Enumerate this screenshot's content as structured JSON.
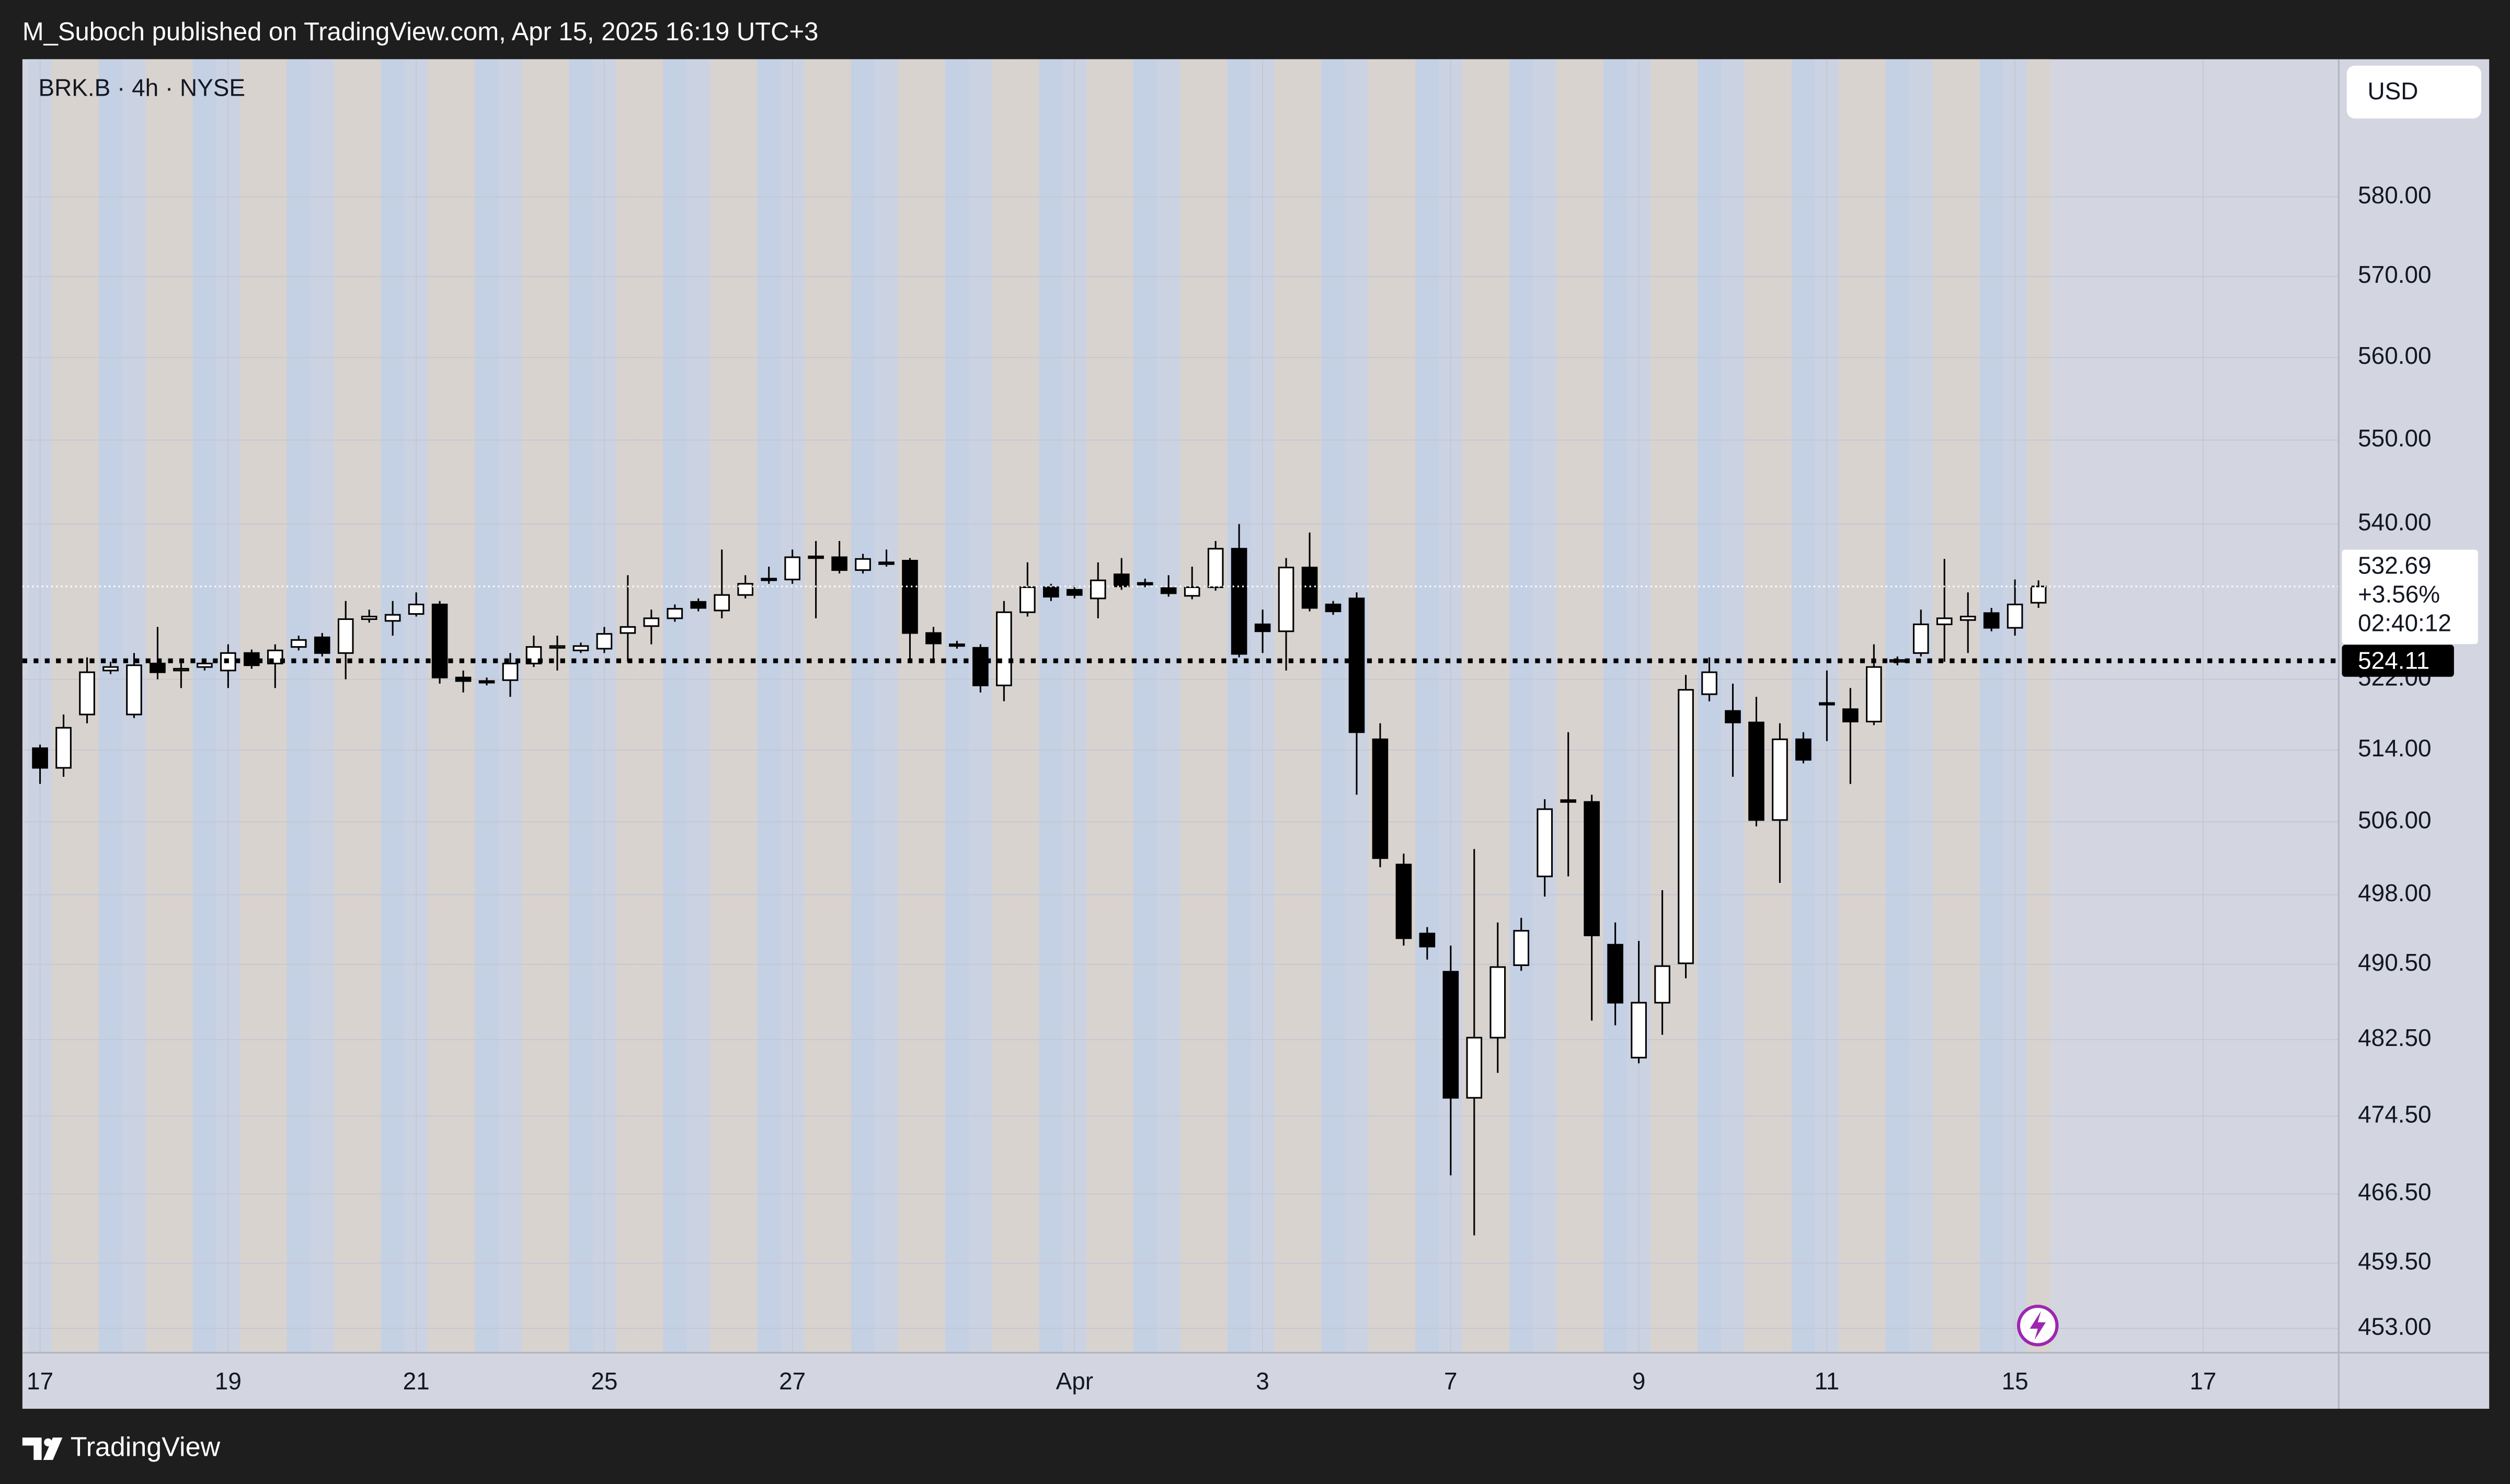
{
  "header": {
    "publisher": "M_Suboch published on TradingView.com, Apr 15, 2025 16:19 UTC+3"
  },
  "footer": {
    "brand": "TradingView"
  },
  "chart_data": {
    "type": "candlestick",
    "title": "BRK.B · 4h · NYSE",
    "currency": "USD",
    "x": [
      0,
      1,
      2,
      3,
      4,
      5,
      6,
      7,
      8,
      9,
      10,
      11,
      12,
      13,
      14,
      15,
      16,
      17,
      18,
      19,
      20,
      21,
      22,
      23,
      24,
      25,
      26,
      27,
      28,
      29,
      30,
      31,
      32,
      33,
      34,
      35,
      36,
      37,
      38,
      39,
      40,
      41,
      42,
      43,
      44,
      45,
      46,
      47,
      48,
      49,
      50,
      51,
      52,
      53,
      54,
      55,
      56,
      57,
      58,
      59,
      60,
      61,
      62,
      63,
      64,
      65,
      66,
      67,
      68,
      69,
      70,
      71,
      72,
      73,
      74,
      75,
      76,
      77,
      78,
      79,
      80,
      81,
      82,
      83,
      84,
      85
    ],
    "open": [
      514.2,
      512,
      518,
      523,
      518,
      523.8,
      523,
      523.4,
      523,
      525,
      523.8,
      525.7,
      526.8,
      525,
      528.9,
      528.7,
      529.5,
      530.6,
      522.2,
      521.8,
      521.9,
      523.8,
      525.6,
      525.3,
      525.5,
      527.3,
      528.1,
      529,
      530.9,
      529.9,
      531.7,
      533.5,
      533.5,
      536.2,
      536.1,
      534.6,
      535.5,
      535.7,
      527.3,
      526,
      525.6,
      521.3,
      529.7,
      532.6,
      532.3,
      531.3,
      534.1,
      533.1,
      532.5,
      531.6,
      532.6,
      537.1,
      528.3,
      527.5,
      534.9,
      530.6,
      531.3,
      515.2,
      501.3,
      493.8,
      489.7,
      476.4,
      482.7,
      490.4,
      500,
      508.4,
      508.2,
      492.6,
      480.6,
      486.4,
      490.6,
      520.3,
      518.4,
      517.1,
      506.2,
      515.2,
      519.2,
      518.6,
      517.2,
      524,
      525,
      528.3,
      528.8,
      529.6,
      527.9,
      530.8
    ],
    "high": [
      514.6,
      518,
      524.5,
      524,
      525,
      528,
      524,
      524.2,
      526,
      525.4,
      526,
      527,
      527.3,
      531,
      530,
      531,
      532,
      531,
      523,
      522.2,
      525,
      527,
      527,
      526.2,
      528,
      534,
      530,
      530.6,
      531.3,
      537,
      534,
      535,
      537,
      538,
      538,
      536.5,
      537,
      536,
      528,
      526.4,
      526,
      531,
      535.5,
      533,
      532.8,
      535.5,
      536,
      533.6,
      534,
      535,
      538,
      540,
      530,
      536,
      539,
      531,
      532,
      517,
      502.5,
      494.5,
      492.5,
      503,
      495,
      495.5,
      508.5,
      516,
      509,
      495,
      493,
      498.5,
      522.5,
      524.5,
      521.5,
      520,
      517,
      516,
      523,
      521,
      526,
      524.6,
      530,
      535.9,
      532,
      530.2,
      533.5,
      533.4
    ],
    "low": [
      510.2,
      511,
      517,
      522.6,
      517.6,
      522,
      521,
      523,
      521,
      523.2,
      521,
      525.3,
      524.6,
      522,
      528.5,
      527,
      529.2,
      521.5,
      520.5,
      521.3,
      520,
      523.4,
      523,
      525,
      525,
      524,
      526,
      528.6,
      529.8,
      529,
      531.3,
      533,
      533,
      529,
      534.2,
      534.2,
      535,
      524,
      524,
      525.5,
      520.5,
      519.5,
      529.2,
      531,
      531.3,
      529,
      532.3,
      532.6,
      531.5,
      531.2,
      532.2,
      524.5,
      525,
      523,
      529.8,
      529.4,
      509,
      501,
      492.5,
      491,
      468.4,
      462.3,
      479,
      489.8,
      497.8,
      500,
      484.5,
      484,
      480,
      483,
      489,
      519.5,
      511,
      505.5,
      499.3,
      512.5,
      515,
      510.2,
      516.8,
      523.6,
      524.6,
      524,
      525,
      527.5,
      527,
      530.2
    ],
    "close": [
      512,
      516.5,
      522.8,
      523.4,
      523.6,
      522.8,
      523.2,
      523.8,
      525,
      523.6,
      525.3,
      526.5,
      525,
      528.9,
      529.2,
      529.4,
      530.6,
      522.2,
      521.8,
      521.7,
      523.8,
      525.7,
      525.8,
      525.8,
      527.2,
      528,
      529,
      530.1,
      530.2,
      531.7,
      533,
      533.6,
      536.1,
      536,
      534.6,
      535.9,
      535.3,
      527.3,
      526.1,
      525.9,
      521.3,
      529.7,
      532.6,
      531.5,
      531.7,
      533.4,
      532.7,
      533.1,
      531.9,
      532.6,
      537.1,
      524.9,
      527.5,
      534.9,
      530.2,
      529.8,
      516,
      502,
      493.3,
      492.4,
      476.4,
      482.7,
      490.2,
      494.1,
      507.4,
      508.2,
      493.6,
      486.4,
      486.4,
      490.3,
      520.8,
      522.8,
      517.1,
      506.2,
      515.2,
      512.9,
      519.3,
      517.2,
      523.4,
      524.2,
      528.3,
      529,
      529.2,
      527.9,
      530.6,
      532.69
    ],
    "up_color": "#ffffff",
    "down_color": "#000000",
    "xlim": [
      -0.75,
      97.77
    ],
    "xticks": [
      {
        "value": 0,
        "label": "17"
      },
      {
        "value": 8,
        "label": "19"
      },
      {
        "value": 16,
        "label": "21"
      },
      {
        "value": 24,
        "label": "25"
      },
      {
        "value": 32,
        "label": "27"
      },
      {
        "value": 44,
        "label": "Apr"
      },
      {
        "value": 52,
        "label": "3"
      },
      {
        "value": 60,
        "label": "7"
      },
      {
        "value": 68,
        "label": "9"
      },
      {
        "value": 76,
        "label": "11"
      },
      {
        "value": 84,
        "label": "15"
      },
      {
        "value": 92,
        "label": "17"
      }
    ],
    "ylim": [
      450.6,
      597.7
    ],
    "log": true,
    "yticks": [
      {
        "value": 580,
        "label": "580.00"
      },
      {
        "value": 570,
        "label": "570.00"
      },
      {
        "value": 560,
        "label": "560.00"
      },
      {
        "value": 550,
        "label": "550.00"
      },
      {
        "value": 540,
        "label": "540.00"
      },
      {
        "value": 522,
        "label": "522.00"
      },
      {
        "value": 514,
        "label": "514.00"
      },
      {
        "value": 506,
        "label": "506.00"
      },
      {
        "value": 498,
        "label": "498.00"
      },
      {
        "value": 490.5,
        "label": "490.50"
      },
      {
        "value": 482.5,
        "label": "482.50"
      },
      {
        "value": 474.5,
        "label": "474.50"
      },
      {
        "value": 466.5,
        "label": "466.50"
      },
      {
        "value": 459.5,
        "label": "459.50"
      },
      {
        "value": 453,
        "label": "453.00"
      }
    ],
    "grid": true,
    "last_price": 532.69,
    "change": "+3.56%",
    "countdown": "02:40:12",
    "price_line": 524.11
  }
}
